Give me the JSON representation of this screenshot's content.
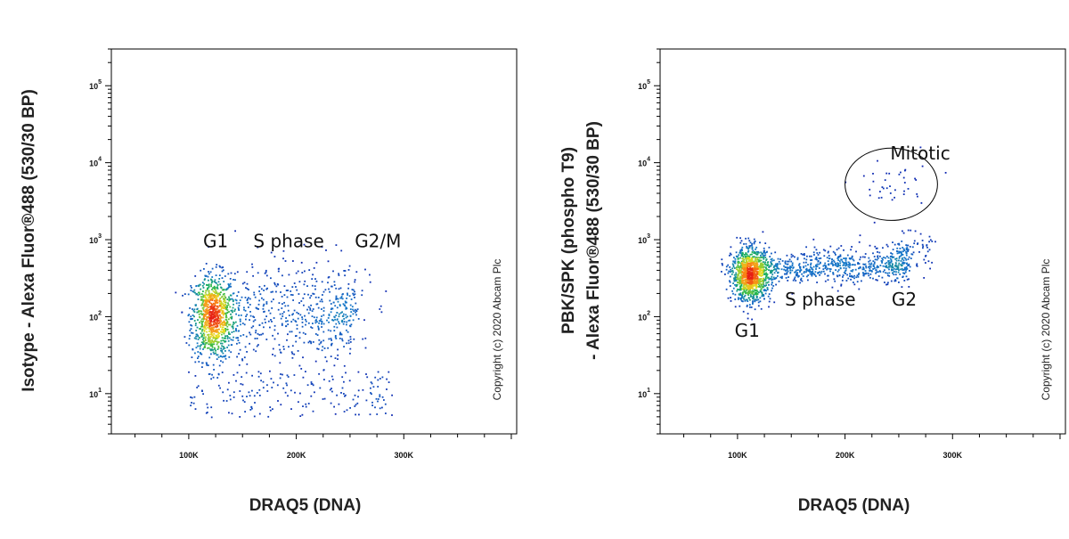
{
  "chart_data": [
    {
      "type": "scatter",
      "title": "",
      "xlabel": "DRAQ5 (DNA)",
      "ylabel_lines": [
        "Isotype - Alexa Fluor®488 (530/30 BP)"
      ],
      "x_scale": "linear",
      "y_scale": "log",
      "xlim": [
        28000,
        405000
      ],
      "ylim": [
        3,
        300000
      ],
      "x_tick_labels": [
        "100K",
        "200K",
        "300K"
      ],
      "y_tick_labels": [
        {
          "base": "10",
          "exp": "1"
        },
        {
          "base": "10",
          "exp": "2"
        },
        {
          "base": "10",
          "exp": "3"
        },
        {
          "base": "10",
          "exp": "4"
        },
        {
          "base": "10",
          "exp": "5"
        }
      ],
      "grid": false,
      "density_coloring": true,
      "annotations": [
        {
          "text": "G1",
          "x": 125000,
          "y": 800
        },
        {
          "text": "S phase",
          "x": 193000,
          "y": 800
        },
        {
          "text": "G2/M",
          "x": 276000,
          "y": 800
        }
      ],
      "copyright": "Copyright (c) 2020 Abcam Plc",
      "clusters": [
        {
          "label": "G1",
          "n": 950,
          "x_center": 122000,
          "x_sd": 10000,
          "log10y_center": 2.0,
          "log10y_sd": 0.28
        },
        {
          "label": "S phase",
          "n": 450,
          "x_range": [
            140000,
            250000
          ],
          "log10y_center": 2.05,
          "log10y_sd": 0.33
        },
        {
          "label": "G2/M",
          "n": 110,
          "x_center": 242000,
          "x_sd": 14000,
          "log10y_center": 2.05,
          "log10y_sd": 0.3
        },
        {
          "label": "low tail",
          "n": 180,
          "x_range": [
            100000,
            290000
          ],
          "log10y_range": [
            0.7,
            1.3
          ]
        }
      ]
    },
    {
      "type": "scatter",
      "title": "",
      "xlabel": "DRAQ5 (DNA)",
      "ylabel_lines": [
        "PBK/SPK (phospho T9)",
        "- Alexa Fluor®488 (530/30 BP)"
      ],
      "x_scale": "linear",
      "y_scale": "log",
      "xlim": [
        28000,
        405000
      ],
      "ylim": [
        3,
        300000
      ],
      "x_tick_labels": [
        "100K",
        "200K",
        "300K"
      ],
      "y_tick_labels": [
        {
          "base": "10",
          "exp": "1"
        },
        {
          "base": "10",
          "exp": "2"
        },
        {
          "base": "10",
          "exp": "3"
        },
        {
          "base": "10",
          "exp": "4"
        },
        {
          "base": "10",
          "exp": "5"
        }
      ],
      "grid": false,
      "density_coloring": true,
      "annotations": [
        {
          "text": "Mitotic",
          "x": 270000,
          "y": 11000
        },
        {
          "text": "S phase",
          "x": 177000,
          "y": 140
        },
        {
          "text": "G2",
          "x": 255000,
          "y": 140
        },
        {
          "text": "G1",
          "x": 109000,
          "y": 55
        }
      ],
      "gate": {
        "shape": "ellipse",
        "label": "Mitotic",
        "x_center": 243000,
        "log10y_center": 3.72,
        "x_radius": 43000,
        "log10y_radius": 0.47
      },
      "copyright": "Copyright (c) 2020 Abcam Plc",
      "clusters": [
        {
          "label": "G1",
          "n": 1100,
          "x_center": 112000,
          "x_sd": 9000,
          "log10y_center": 2.55,
          "log10y_sd": 0.17
        },
        {
          "label": "S phase",
          "n": 600,
          "x_range": [
            130000,
            260000
          ],
          "log10y_center": 2.65,
          "log10y_sd": 0.11
        },
        {
          "label": "G2",
          "n": 120,
          "x_center": 255000,
          "x_sd": 12000,
          "log10y_center": 2.85,
          "log10y_sd": 0.12
        },
        {
          "label": "Mitotic",
          "n": 38,
          "x_center": 243000,
          "x_sd": 18000,
          "log10y_center": 3.72,
          "log10y_sd": 0.18
        }
      ]
    }
  ]
}
